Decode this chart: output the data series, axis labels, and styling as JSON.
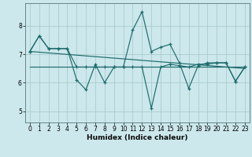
{
  "xlabel": "Humidex (Indice chaleur)",
  "bg_color": "#cce8ec",
  "grid_color": "#aacccc",
  "line_color": "#1e6b6b",
  "xlim": [
    -0.5,
    23.5
  ],
  "ylim": [
    4.6,
    8.8
  ],
  "yticks": [
    5,
    6,
    7,
    8
  ],
  "xticks": [
    0,
    1,
    2,
    3,
    4,
    5,
    6,
    7,
    8,
    9,
    10,
    11,
    12,
    13,
    14,
    15,
    16,
    17,
    18,
    19,
    20,
    21,
    22,
    23
  ],
  "series1_x": [
    0,
    1,
    2,
    3,
    4,
    5,
    6,
    7,
    8,
    9,
    10,
    11,
    12,
    13,
    14,
    15,
    16,
    17,
    18,
    19,
    20,
    21,
    22,
    23
  ],
  "series1_y": [
    7.1,
    7.65,
    7.2,
    7.2,
    7.2,
    6.55,
    6.55,
    6.55,
    6.55,
    6.55,
    6.55,
    6.55,
    6.55,
    5.1,
    6.55,
    6.65,
    6.6,
    6.55,
    6.65,
    6.65,
    6.7,
    6.7,
    6.05,
    6.55
  ],
  "series2_x": [
    0,
    1,
    2,
    3,
    4,
    5,
    6,
    7,
    8,
    9,
    10,
    11,
    12,
    13,
    14,
    15,
    16,
    17,
    18,
    19,
    20,
    21,
    22,
    23
  ],
  "series2_y": [
    7.1,
    7.65,
    7.2,
    7.2,
    7.2,
    6.1,
    5.75,
    6.65,
    6.0,
    6.55,
    6.55,
    7.85,
    8.5,
    7.1,
    7.25,
    7.35,
    6.7,
    5.8,
    6.6,
    6.7,
    6.7,
    6.7,
    6.05,
    6.55
  ],
  "series3_x": [
    0,
    23
  ],
  "series3_y": [
    7.1,
    6.5
  ],
  "series4_x": [
    0,
    23
  ],
  "series4_y": [
    6.55,
    6.55
  ]
}
